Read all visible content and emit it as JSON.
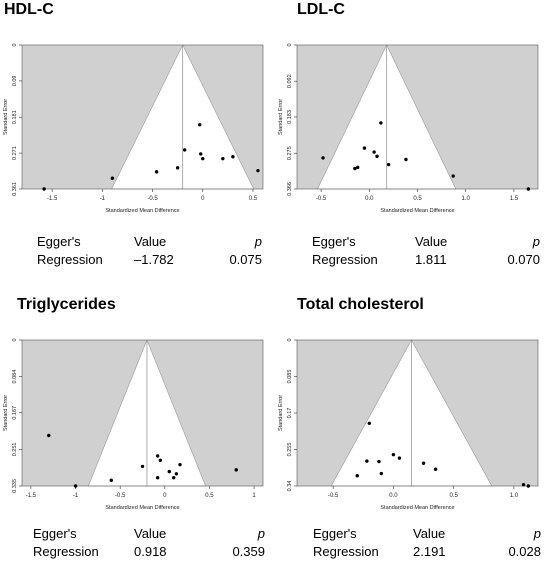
{
  "egger_labels": {
    "line1": "Egger's",
    "line2": "Regression",
    "value_header": "Value",
    "p_header": "p"
  },
  "panels": [
    {
      "title": "HDL-C",
      "egger": {
        "value": "–1.782",
        "p": "0.075"
      }
    },
    {
      "title": "LDL-C",
      "egger": {
        "value": "1.811",
        "p": "0.070"
      }
    },
    {
      "title": "Triglycerides",
      "egger": {
        "value": "0.918",
        "p": "0.359"
      }
    },
    {
      "title": "Total cholesterol",
      "egger": {
        "value": "2.191",
        "p": "0.028"
      }
    }
  ],
  "chart_data": [
    {
      "type": "scatter",
      "subtype": "funnel",
      "title": "HDL-C",
      "xlabel": "Standardized Mean Difference",
      "ylabel": "Standard Error",
      "xlim": [
        -1.8,
        0.6
      ],
      "ylim": [
        0,
        0.361
      ],
      "y_reversed": true,
      "xticks": [
        -1.5,
        -1,
        -0.5,
        0,
        0.5
      ],
      "xtick_labels": [
        "-1.5",
        "-1",
        "-0.5",
        "0",
        "0.5"
      ],
      "yticks": [
        0,
        0.09,
        0.181,
        0.271,
        0.361
      ],
      "ytick_labels": [
        "0",
        "0.09",
        "0.181",
        "0.271",
        "0.361"
      ],
      "summary_x": -0.2,
      "points": [
        {
          "x": -1.58,
          "y": 0.361
        },
        {
          "x": -0.9,
          "y": 0.334
        },
        {
          "x": -0.46,
          "y": 0.318
        },
        {
          "x": -0.25,
          "y": 0.308
        },
        {
          "x": -0.18,
          "y": 0.263
        },
        {
          "x": -0.03,
          "y": 0.2
        },
        {
          "x": -0.02,
          "y": 0.273
        },
        {
          "x": 0.0,
          "y": 0.285
        },
        {
          "x": 0.2,
          "y": 0.285
        },
        {
          "x": 0.3,
          "y": 0.28
        },
        {
          "x": 0.55,
          "y": 0.315
        }
      ],
      "grid": false
    },
    {
      "type": "scatter",
      "subtype": "funnel",
      "title": "LDL-C",
      "xlabel": "Standardized Mean Difference",
      "ylabel": "Standard Error",
      "xlim": [
        -0.75,
        1.75
      ],
      "ylim": [
        0,
        0.366
      ],
      "y_reversed": true,
      "xticks": [
        -0.5,
        0,
        0.5,
        1,
        1.5
      ],
      "xtick_labels": [
        "-0.5",
        "0.0",
        "0.5",
        "1.0",
        "1.5"
      ],
      "yticks": [
        0,
        0.092,
        0.183,
        0.275,
        0.366
      ],
      "ytick_labels": [
        "0",
        "0.092",
        "0.183",
        "0.275",
        "0.366"
      ],
      "summary_x": 0.18,
      "points": [
        {
          "x": -0.48,
          "y": 0.287
        },
        {
          "x": -0.15,
          "y": 0.314
        },
        {
          "x": -0.12,
          "y": 0.311
        },
        {
          "x": -0.05,
          "y": 0.262
        },
        {
          "x": 0.05,
          "y": 0.272
        },
        {
          "x": 0.08,
          "y": 0.283
        },
        {
          "x": 0.12,
          "y": 0.198
        },
        {
          "x": 0.2,
          "y": 0.304
        },
        {
          "x": 0.38,
          "y": 0.291
        },
        {
          "x": 0.87,
          "y": 0.333
        },
        {
          "x": 1.65,
          "y": 0.366
        }
      ],
      "grid": false
    },
    {
      "type": "scatter",
      "subtype": "funnel",
      "title": "Triglycerides",
      "xlabel": "Standardized Mean Difference",
      "ylabel": "Standard Error",
      "xlim": [
        -1.6,
        1.1
      ],
      "ylim": [
        0,
        0.335
      ],
      "y_reversed": true,
      "xticks": [
        -1.5,
        -1,
        -0.5,
        0,
        0.5,
        1
      ],
      "xtick_labels": [
        "-1.5",
        "-1",
        "-0.5",
        "0",
        "0.5",
        "1"
      ],
      "yticks": [
        0,
        0.084,
        0.167,
        0.251,
        0.335
      ],
      "ytick_labels": [
        "0",
        "0.084",
        "0.167",
        "0.251",
        "0.335"
      ],
      "summary_x": -0.2,
      "points": [
        {
          "x": -1.3,
          "y": 0.219
        },
        {
          "x": -1.0,
          "y": 0.335
        },
        {
          "x": -0.6,
          "y": 0.322
        },
        {
          "x": -0.25,
          "y": 0.29
        },
        {
          "x": -0.08,
          "y": 0.266
        },
        {
          "x": -0.05,
          "y": 0.276
        },
        {
          "x": -0.08,
          "y": 0.316
        },
        {
          "x": 0.05,
          "y": 0.302
        },
        {
          "x": 0.1,
          "y": 0.316
        },
        {
          "x": 0.13,
          "y": 0.307
        },
        {
          "x": 0.17,
          "y": 0.286
        },
        {
          "x": 0.8,
          "y": 0.298
        }
      ],
      "grid": false
    },
    {
      "type": "scatter",
      "subtype": "funnel",
      "title": "Total cholesterol",
      "xlabel": "Standardized Mean Difference",
      "ylabel": "Standard Error",
      "xlim": [
        -0.8,
        1.2
      ],
      "ylim": [
        0,
        0.34
      ],
      "y_reversed": true,
      "xticks": [
        -0.5,
        0,
        0.5,
        1
      ],
      "xtick_labels": [
        "-0.5",
        "0.0",
        "0.5",
        "1.0"
      ],
      "yticks": [
        0,
        0.085,
        0.17,
        0.255,
        0.34
      ],
      "ytick_labels": [
        "0",
        "0.085",
        "0.17",
        "0.255",
        "0.34"
      ],
      "summary_x": 0.15,
      "points": [
        {
          "x": -0.3,
          "y": 0.316
        },
        {
          "x": -0.2,
          "y": 0.194
        },
        {
          "x": -0.22,
          "y": 0.282
        },
        {
          "x": -0.12,
          "y": 0.283
        },
        {
          "x": -0.1,
          "y": 0.311
        },
        {
          "x": 0.0,
          "y": 0.267
        },
        {
          "x": 0.05,
          "y": 0.275
        },
        {
          "x": 0.25,
          "y": 0.287
        },
        {
          "x": 0.35,
          "y": 0.301
        },
        {
          "x": 1.08,
          "y": 0.337
        },
        {
          "x": 1.12,
          "y": 0.34
        }
      ],
      "grid": false
    }
  ]
}
